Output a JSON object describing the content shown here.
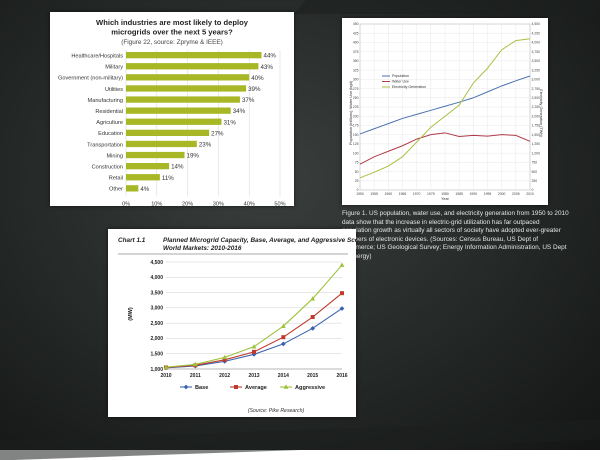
{
  "background": {
    "colors": [
      "#3a3f3d",
      "#131514"
    ]
  },
  "chart_data": [
    {
      "type": "bar",
      "orientation": "horizontal",
      "title": "Which industries are most likely to deploy microgrids over the next 5 years?",
      "subtitle": "(Figure 22, source: Zpryme & IEEE)",
      "categories": [
        "Healthcare/Hospitals",
        "Military",
        "Government (non-military)",
        "Utilities",
        "Manufacturing",
        "Residential",
        "Agriculture",
        "Education",
        "Transportation",
        "Mining",
        "Construction",
        "Retail",
        "Other"
      ],
      "values": [
        44,
        43,
        40,
        39,
        37,
        34,
        31,
        27,
        23,
        19,
        14,
        11,
        4
      ],
      "value_labels": [
        "44%",
        "43%",
        "40%",
        "39%",
        "37%",
        "34%",
        "31%",
        "27%",
        "23%",
        "19%",
        "14%",
        "11%",
        "4%"
      ],
      "xlim": [
        0,
        50
      ],
      "xticks": [
        "0%",
        "10%",
        "20%",
        "30%",
        "40%",
        "50%"
      ],
      "bar_color": "#a8b726",
      "grid": true
    },
    {
      "type": "line",
      "x": [
        1950,
        1955,
        1960,
        1965,
        1970,
        1975,
        1980,
        1985,
        1990,
        1995,
        2000,
        2005,
        2010
      ],
      "series": [
        {
          "name": "Population",
          "color": "#4a72b0",
          "axis": "left",
          "values": [
            152,
            166,
            180,
            194,
            205,
            216,
            227,
            238,
            250,
            266,
            282,
            296,
            309
          ]
        },
        {
          "name": "Water Use",
          "color": "#b03a4a",
          "axis": "left",
          "values": [
            70,
            90,
            105,
            120,
            138,
            150,
            155,
            145,
            148,
            146,
            150,
            148,
            132
          ]
        },
        {
          "name": "Electricity Generation",
          "color": "#a8c040",
          "axis": "right",
          "values": [
            330,
            480,
            650,
            900,
            1300,
            1700,
            2000,
            2300,
            2900,
            3300,
            3800,
            4050,
            4100
          ]
        }
      ],
      "ylabel": "Population (millions), Water Use (bgd)",
      "y2label": "Electricity Generation (TWh)",
      "xlabel": "Year",
      "ylim": [
        0,
        450
      ],
      "y2lim": [
        0,
        4500
      ],
      "xticks": [
        "1950",
        "1955",
        "1960",
        "1965",
        "1970",
        "1975",
        "1980",
        "1985",
        "1990",
        "1995",
        "2000",
        "2005",
        "2010"
      ],
      "yticks": [
        "0",
        "25",
        "50",
        "75",
        "100",
        "125",
        "150",
        "175",
        "200",
        "225",
        "250",
        "275",
        "300",
        "325",
        "350",
        "375",
        "400",
        "425",
        "450"
      ],
      "y2ticks": [
        "0",
        "250",
        "500",
        "750",
        "1,000",
        "1,250",
        "1,500",
        "1,750",
        "2,000",
        "2,250",
        "2,500",
        "2,750",
        "3,000",
        "3,250",
        "3,500",
        "3,750",
        "4,000",
        "4,250",
        "4,500"
      ],
      "legend": "upper-left",
      "grid": true
    },
    {
      "type": "line",
      "label": "Chart 1.1",
      "title": "Planned Microgrid Capacity, Base, Average, and Aggressive Scenarios, World Markets: 2010-2016",
      "ylabel": "(MW)",
      "x": [
        "2010",
        "2011",
        "2012",
        "2013",
        "2014",
        "2015",
        "2016"
      ],
      "series": [
        {
          "name": "Base",
          "color": "#3a64b0",
          "marker": "diamond",
          "values": [
            1040,
            1100,
            1250,
            1480,
            1820,
            2330,
            2980
          ]
        },
        {
          "name": "Average",
          "color": "#c0392b",
          "marker": "square",
          "values": [
            1050,
            1120,
            1300,
            1560,
            2040,
            2700,
            3480
          ]
        },
        {
          "name": "Aggressive",
          "color": "#9cc23a",
          "marker": "triangle",
          "values": [
            1060,
            1150,
            1380,
            1730,
            2400,
            3300,
            4400
          ]
        }
      ],
      "ylim": [
        1000,
        4500
      ],
      "yticks": [
        "1,000",
        "1,500",
        "2,000",
        "2,500",
        "3,000",
        "3,500",
        "4,000",
        "4,500"
      ],
      "legend": "bottom",
      "grid": true,
      "source": "(Source: Pike Research)"
    }
  ],
  "caption": "Figure 1. US population, water use, and electricity generation from 1950 to 2010 data show that the increase in electric-grid utilization has far outpaced population growth as virtually all sectors of society have adopted ever-greater numbers of electronic devices. (Sources: Census Bureau, US Dept of Commerce; US Geological Survey; Energy Information Administration, US Dept of Energy)"
}
